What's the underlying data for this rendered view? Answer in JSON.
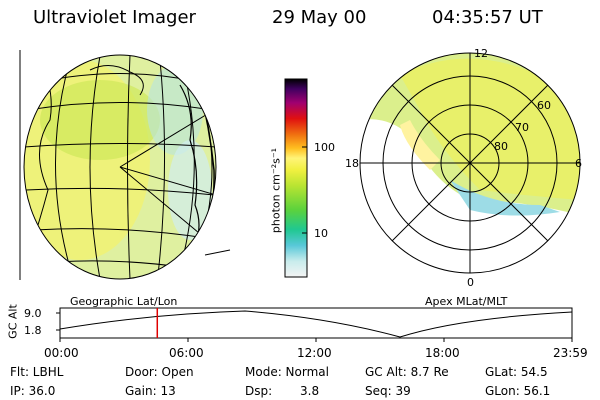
{
  "header": {
    "instrument": "Ultraviolet Imager",
    "date": "29 May 00",
    "time": "04:35:57 UT"
  },
  "panels": {
    "left_label": "Geographic Lat/Lon",
    "right_label": "Apex MLat/MLT"
  },
  "colorbar": {
    "unit_label": "photon cm⁻²s⁻¹",
    "ticks": [
      "100",
      "10"
    ]
  },
  "polar": {
    "mlt_labels": {
      "top": "12",
      "left": "18",
      "right": "6",
      "bottom": "0"
    },
    "lat_labels": [
      "60",
      "70",
      "80"
    ]
  },
  "timeline": {
    "ylabel": "GC Alt",
    "y_ticks": [
      "9.0",
      "1.8"
    ],
    "x_ticks": [
      "00:00",
      "06:00",
      "12:00",
      "18:00",
      "23:59"
    ],
    "current_time_fraction": 0.19,
    "marker_color": "#e00000"
  },
  "info": {
    "flt": "Flt: LBHL",
    "door": "Door: Open",
    "mode": "Mode: Normal",
    "gc_alt": "GC Alt: 8.7 Re",
    "glat": "GLat: 54.5",
    "ip": "IP: 36.0",
    "gain": "Gain: 13",
    "dsp_label": "Dsp:",
    "dsp_value": "3.8",
    "seq": "Seq: 39",
    "glon": "GLon: 56.1"
  }
}
